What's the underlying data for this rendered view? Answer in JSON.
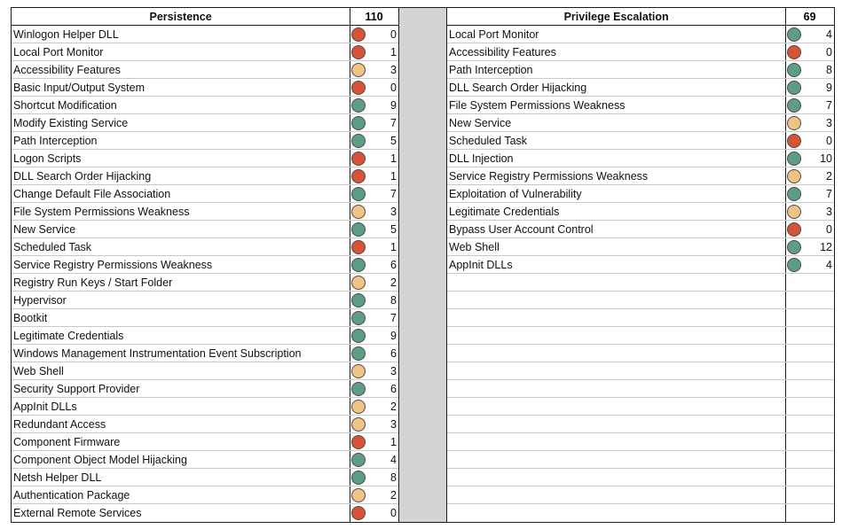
{
  "persistence": {
    "title": "Persistence",
    "total": "110",
    "rows": [
      {
        "name": "Winlogon Helper DLL",
        "status": "red",
        "value": "0"
      },
      {
        "name": "Local Port Monitor",
        "status": "red",
        "value": "1"
      },
      {
        "name": "Accessibility Features",
        "status": "amber",
        "value": "3"
      },
      {
        "name": "Basic Input/Output System",
        "status": "red",
        "value": "0"
      },
      {
        "name": "Shortcut Modification",
        "status": "green",
        "value": "9"
      },
      {
        "name": "Modify Existing Service",
        "status": "green",
        "value": "7"
      },
      {
        "name": "Path Interception",
        "status": "green",
        "value": "5"
      },
      {
        "name": "Logon Scripts",
        "status": "red",
        "value": "1"
      },
      {
        "name": "DLL Search Order Hijacking",
        "status": "red",
        "value": "1"
      },
      {
        "name": "Change Default File Association",
        "status": "green",
        "value": "7"
      },
      {
        "name": "File System Permissions Weakness",
        "status": "amber",
        "value": "3"
      },
      {
        "name": "New Service",
        "status": "green",
        "value": "5"
      },
      {
        "name": "Scheduled Task",
        "status": "red",
        "value": "1"
      },
      {
        "name": "Service Registry Permissions Weakness",
        "status": "green",
        "value": "6"
      },
      {
        "name": "Registry Run Keys / Start Folder",
        "status": "amber",
        "value": "2"
      },
      {
        "name": "Hypervisor",
        "status": "green",
        "value": "8"
      },
      {
        "name": "Bootkit",
        "status": "green",
        "value": "7"
      },
      {
        "name": "Legitimate Credentials",
        "status": "green",
        "value": "9"
      },
      {
        "name": "Windows Management Instrumentation Event Subscription",
        "status": "green",
        "value": "6"
      },
      {
        "name": "Web Shell",
        "status": "amber",
        "value": "3"
      },
      {
        "name": "Security Support Provider",
        "status": "green",
        "value": "6"
      },
      {
        "name": "AppInit DLLs",
        "status": "amber",
        "value": "2"
      },
      {
        "name": "Redundant Access",
        "status": "amber",
        "value": "3"
      },
      {
        "name": "Component Firmware",
        "status": "red",
        "value": "1"
      },
      {
        "name": "Component Object Model Hijacking",
        "status": "green",
        "value": "4"
      },
      {
        "name": "Netsh Helper DLL",
        "status": "green",
        "value": "8"
      },
      {
        "name": "Authentication Package",
        "status": "amber",
        "value": "2"
      },
      {
        "name": "External Remote Services",
        "status": "red",
        "value": "0"
      }
    ]
  },
  "privilege_escalation": {
    "title": "Privilege Escalation",
    "total": "69",
    "rows": [
      {
        "name": "Local Port Monitor",
        "status": "green",
        "value": "4"
      },
      {
        "name": "Accessibility Features",
        "status": "red",
        "value": "0"
      },
      {
        "name": "Path Interception",
        "status": "green",
        "value": "8"
      },
      {
        "name": "DLL Search Order Hijacking",
        "status": "green",
        "value": "9"
      },
      {
        "name": "File System Permissions Weakness",
        "status": "green",
        "value": "7"
      },
      {
        "name": "New Service",
        "status": "amber",
        "value": "3"
      },
      {
        "name": "Scheduled Task",
        "status": "red",
        "value": "0"
      },
      {
        "name": "DLL Injection",
        "status": "green",
        "value": "10"
      },
      {
        "name": "Service Registry Permissions Weakness",
        "status": "amber",
        "value": "2"
      },
      {
        "name": "Exploitation of Vulnerability",
        "status": "green",
        "value": "7"
      },
      {
        "name": "Legitimate Credentials",
        "status": "amber",
        "value": "3"
      },
      {
        "name": "Bypass User Account Control",
        "status": "red",
        "value": "0"
      },
      {
        "name": "Web Shell",
        "status": "green",
        "value": "12"
      },
      {
        "name": "AppInit DLLs",
        "status": "green",
        "value": "4"
      }
    ],
    "empty_rows": 14
  },
  "status_colors": {
    "red": "#d65337",
    "amber": "#eec484",
    "green": "#5d9d84"
  }
}
